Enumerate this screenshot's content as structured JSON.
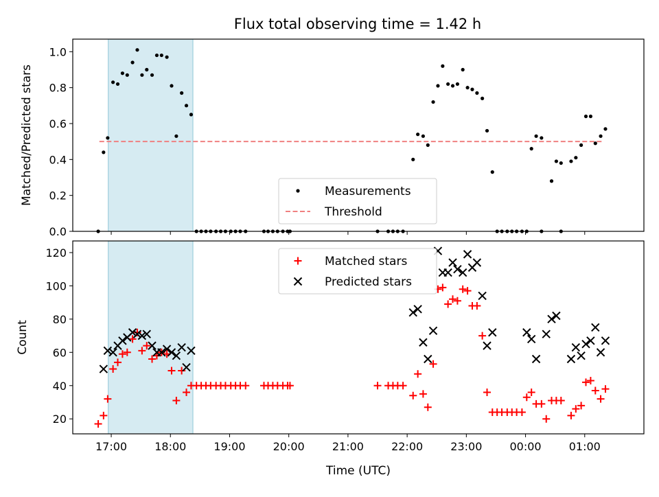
{
  "figure": {
    "title": "Flux total observing time = 1.42 h"
  },
  "chart_data": [
    {
      "id": "ratio",
      "type": "scatter",
      "ylabel": "Matched/Predicted stars",
      "xlim": [
        -0.65,
        9.0
      ],
      "ylim": [
        0,
        1.07
      ],
      "yticks": [
        0.0,
        0.2,
        0.4,
        0.6,
        0.8,
        1.0
      ],
      "ytick_labels": [
        "0.0",
        "0.2",
        "0.4",
        "0.6",
        "0.8",
        "1.0"
      ],
      "shaded_interval": [
        -0.05,
        1.38
      ],
      "threshold": {
        "value": 0.5,
        "x_range": [
          -0.2,
          8.3
        ],
        "color": "#f08080"
      },
      "legend": {
        "position": "lower-center",
        "entries": [
          "Measurements",
          "Threshold"
        ]
      },
      "series": [
        {
          "name": "Measurements",
          "marker": "dot",
          "color": "#000000",
          "points": [
            [
              -0.22,
              0.0
            ],
            [
              -0.13,
              0.44
            ],
            [
              -0.06,
              0.52
            ],
            [
              0.03,
              0.83
            ],
            [
              0.11,
              0.82
            ],
            [
              0.19,
              0.88
            ],
            [
              0.27,
              0.87
            ],
            [
              0.36,
              0.94
            ],
            [
              0.44,
              1.01
            ],
            [
              0.52,
              0.87
            ],
            [
              0.6,
              0.9
            ],
            [
              0.69,
              0.87
            ],
            [
              0.77,
              0.98
            ],
            [
              0.85,
              0.98
            ],
            [
              0.94,
              0.97
            ],
            [
              1.02,
              0.81
            ],
            [
              1.1,
              0.53
            ],
            [
              1.19,
              0.77
            ],
            [
              1.27,
              0.7
            ],
            [
              1.35,
              0.65
            ],
            [
              1.44,
              0.0
            ],
            [
              1.52,
              0.0
            ],
            [
              1.6,
              0.0
            ],
            [
              1.68,
              0.0
            ],
            [
              1.77,
              0.0
            ],
            [
              1.85,
              0.0
            ],
            [
              1.93,
              0.0
            ],
            [
              2.02,
              0.0
            ],
            [
              2.1,
              0.0
            ],
            [
              2.18,
              0.0
            ],
            [
              2.27,
              0.0
            ],
            [
              2.58,
              0.0
            ],
            [
              2.65,
              0.0
            ],
            [
              2.73,
              0.0
            ],
            [
              2.81,
              0.0
            ],
            [
              2.9,
              0.0
            ],
            [
              2.98,
              0.0
            ],
            [
              3.02,
              0.0
            ],
            [
              4.5,
              0.0
            ],
            [
              4.68,
              0.0
            ],
            [
              4.76,
              0.0
            ],
            [
              4.84,
              0.0
            ],
            [
              4.93,
              0.0
            ],
            [
              5.1,
              0.4
            ],
            [
              5.18,
              0.54
            ],
            [
              5.27,
              0.53
            ],
            [
              5.35,
              0.48
            ],
            [
              5.44,
              0.72
            ],
            [
              5.52,
              0.81
            ],
            [
              5.6,
              0.92
            ],
            [
              5.69,
              0.82
            ],
            [
              5.77,
              0.81
            ],
            [
              5.85,
              0.82
            ],
            [
              5.94,
              0.9
            ],
            [
              6.02,
              0.8
            ],
            [
              6.1,
              0.79
            ],
            [
              6.18,
              0.77
            ],
            [
              6.27,
              0.74
            ],
            [
              6.35,
              0.56
            ],
            [
              6.44,
              0.33
            ],
            [
              6.52,
              0.0
            ],
            [
              6.6,
              0.0
            ],
            [
              6.69,
              0.0
            ],
            [
              6.77,
              0.0
            ],
            [
              6.85,
              0.0
            ],
            [
              6.94,
              0.0
            ],
            [
              7.02,
              0.0
            ],
            [
              7.27,
              0.0
            ],
            [
              7.6,
              0.0
            ],
            [
              7.1,
              0.46
            ],
            [
              7.18,
              0.53
            ],
            [
              7.27,
              0.52
            ],
            [
              7.44,
              0.28
            ],
            [
              7.52,
              0.39
            ],
            [
              7.6,
              0.38
            ],
            [
              7.77,
              0.39
            ],
            [
              7.85,
              0.41
            ],
            [
              7.94,
              0.48
            ],
            [
              8.02,
              0.64
            ],
            [
              8.1,
              0.64
            ],
            [
              8.18,
              0.49
            ],
            [
              8.27,
              0.53
            ],
            [
              8.35,
              0.57
            ]
          ]
        }
      ]
    },
    {
      "id": "counts",
      "type": "scatter",
      "ylabel": "Count",
      "xlabel": "Time (UTC)",
      "xlim": [
        -0.65,
        9.0
      ],
      "ylim": [
        11,
        127
      ],
      "yticks": [
        20,
        40,
        60,
        80,
        100,
        120
      ],
      "ytick_labels": [
        "20",
        "40",
        "60",
        "80",
        "100",
        "120"
      ],
      "xticks": [
        0,
        1,
        2,
        3,
        4,
        5,
        6,
        7,
        8
      ],
      "xtick_labels": [
        "17:00",
        "18:00",
        "19:00",
        "20:00",
        "21:00",
        "22:00",
        "23:00",
        "00:00",
        "01:00"
      ],
      "shaded_interval": [
        -0.05,
        1.38
      ],
      "legend": {
        "position": "upper-center",
        "entries": [
          "Matched stars",
          "Predicted stars"
        ]
      },
      "series": [
        {
          "name": "Matched stars",
          "marker": "plus",
          "color": "#ff0000",
          "points": [
            [
              -0.22,
              17
            ],
            [
              -0.13,
              22
            ],
            [
              -0.06,
              32
            ],
            [
              0.03,
              50
            ],
            [
              0.11,
              54
            ],
            [
              0.19,
              59
            ],
            [
              0.27,
              60
            ],
            [
              0.36,
              68
            ],
            [
              0.44,
              72
            ],
            [
              0.52,
              61
            ],
            [
              0.6,
              64
            ],
            [
              0.69,
              56
            ],
            [
              0.77,
              58
            ],
            [
              0.85,
              60
            ],
            [
              0.94,
              59
            ],
            [
              1.02,
              49
            ],
            [
              1.1,
              31
            ],
            [
              1.19,
              49
            ],
            [
              1.27,
              36
            ],
            [
              1.35,
              40
            ],
            [
              1.44,
              40
            ],
            [
              1.52,
              40
            ],
            [
              1.6,
              40
            ],
            [
              1.68,
              40
            ],
            [
              1.77,
              40
            ],
            [
              1.85,
              40
            ],
            [
              1.93,
              40
            ],
            [
              2.02,
              40
            ],
            [
              2.1,
              40
            ],
            [
              2.18,
              40
            ],
            [
              2.27,
              40
            ],
            [
              2.58,
              40
            ],
            [
              2.65,
              40
            ],
            [
              2.73,
              40
            ],
            [
              2.81,
              40
            ],
            [
              2.9,
              40
            ],
            [
              2.98,
              40
            ],
            [
              3.02,
              40
            ],
            [
              4.5,
              40
            ],
            [
              4.68,
              40
            ],
            [
              4.76,
              40
            ],
            [
              4.84,
              40
            ],
            [
              4.93,
              40
            ],
            [
              5.1,
              34
            ],
            [
              5.18,
              47
            ],
            [
              5.27,
              35
            ],
            [
              5.35,
              27
            ],
            [
              5.44,
              53
            ],
            [
              5.52,
              98
            ],
            [
              5.6,
              99
            ],
            [
              5.69,
              89
            ],
            [
              5.77,
              92
            ],
            [
              5.85,
              91
            ],
            [
              5.94,
              98
            ],
            [
              6.02,
              97
            ],
            [
              6.1,
              88
            ],
            [
              6.18,
              88
            ],
            [
              6.27,
              70
            ],
            [
              6.35,
              36
            ],
            [
              6.44,
              24
            ],
            [
              6.52,
              24
            ],
            [
              6.6,
              24
            ],
            [
              6.69,
              24
            ],
            [
              6.77,
              24
            ],
            [
              6.85,
              24
            ],
            [
              6.94,
              24
            ],
            [
              7.02,
              33
            ],
            [
              7.1,
              36
            ],
            [
              7.18,
              29
            ],
            [
              7.27,
              29
            ],
            [
              7.35,
              20
            ],
            [
              7.44,
              31
            ],
            [
              7.52,
              31
            ],
            [
              7.6,
              31
            ],
            [
              7.77,
              22
            ],
            [
              7.85,
              26
            ],
            [
              7.94,
              28
            ],
            [
              8.02,
              42
            ],
            [
              8.1,
              43
            ],
            [
              8.18,
              37
            ],
            [
              8.27,
              32
            ],
            [
              8.35,
              38
            ]
          ]
        },
        {
          "name": "Predicted stars",
          "marker": "x",
          "color": "#000000",
          "points": [
            [
              -0.13,
              50
            ],
            [
              -0.06,
              61
            ],
            [
              0.03,
              60
            ],
            [
              0.11,
              64
            ],
            [
              0.19,
              67
            ],
            [
              0.27,
              69
            ],
            [
              0.36,
              72
            ],
            [
              0.44,
              71
            ],
            [
              0.52,
              70
            ],
            [
              0.6,
              71
            ],
            [
              0.69,
              64
            ],
            [
              0.77,
              60
            ],
            [
              0.85,
              60
            ],
            [
              0.94,
              62
            ],
            [
              1.02,
              60
            ],
            [
              1.1,
              58
            ],
            [
              1.19,
              63
            ],
            [
              1.27,
              51
            ],
            [
              1.35,
              61
            ],
            [
              5.1,
              84
            ],
            [
              5.18,
              86
            ],
            [
              5.27,
              66
            ],
            [
              5.35,
              56
            ],
            [
              5.44,
              73
            ],
            [
              5.52,
              121
            ],
            [
              5.6,
              108
            ],
            [
              5.69,
              108
            ],
            [
              5.77,
              114
            ],
            [
              5.85,
              110
            ],
            [
              5.94,
              108
            ],
            [
              6.02,
              119
            ],
            [
              6.1,
              111
            ],
            [
              6.18,
              114
            ],
            [
              6.27,
              94
            ],
            [
              6.35,
              64
            ],
            [
              6.44,
              72
            ],
            [
              7.02,
              72
            ],
            [
              7.1,
              68
            ],
            [
              7.18,
              56
            ],
            [
              7.35,
              71
            ],
            [
              7.44,
              80
            ],
            [
              7.52,
              82
            ],
            [
              7.77,
              56
            ],
            [
              7.85,
              63
            ],
            [
              7.94,
              58
            ],
            [
              8.02,
              65
            ],
            [
              8.1,
              67
            ],
            [
              8.18,
              75
            ],
            [
              8.27,
              60
            ],
            [
              8.35,
              67
            ]
          ]
        }
      ]
    }
  ]
}
